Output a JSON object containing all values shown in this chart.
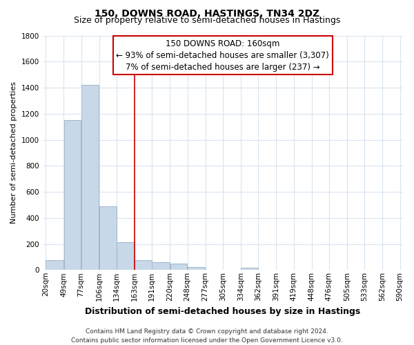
{
  "title": "150, DOWNS ROAD, HASTINGS, TN34 2DZ",
  "subtitle": "Size of property relative to semi-detached houses in Hastings",
  "xlabel": "Distribution of semi-detached houses by size in Hastings",
  "ylabel": "Number of semi-detached properties",
  "bar_edges": [
    20,
    49,
    77,
    106,
    134,
    163,
    191,
    220,
    248,
    277,
    305,
    334,
    362,
    391,
    419,
    448,
    476,
    505,
    533,
    562,
    590
  ],
  "bar_heights": [
    75,
    1150,
    1420,
    490,
    215,
    75,
    60,
    50,
    25,
    0,
    0,
    15,
    0,
    0,
    0,
    0,
    0,
    0,
    0,
    0
  ],
  "bar_color": "#c8d8e8",
  "bar_edgecolor": "#a0b8cc",
  "property_line_x": 163,
  "property_line_color": "#cc0000",
  "annotation_line1": "150 DOWNS ROAD: 160sqm",
  "annotation_line2": "← 93% of semi-detached houses are smaller (3,307)",
  "annotation_line3": "7% of semi-detached houses are larger (237) →",
  "ylim": [
    0,
    1800
  ],
  "yticks": [
    0,
    200,
    400,
    600,
    800,
    1000,
    1200,
    1400,
    1600,
    1800
  ],
  "xtick_labels": [
    "20sqm",
    "49sqm",
    "77sqm",
    "106sqm",
    "134sqm",
    "163sqm",
    "191sqm",
    "220sqm",
    "248sqm",
    "277sqm",
    "305sqm",
    "334sqm",
    "362sqm",
    "391sqm",
    "419sqm",
    "448sqm",
    "476sqm",
    "505sqm",
    "533sqm",
    "562sqm",
    "590sqm"
  ],
  "footer_line1": "Contains HM Land Registry data © Crown copyright and database right 2024.",
  "footer_line2": "Contains public sector information licensed under the Open Government Licence v3.0.",
  "background_color": "#ffffff",
  "grid_color": "#d8e4f0",
  "title_fontsize": 10,
  "subtitle_fontsize": 9,
  "xlabel_fontsize": 9,
  "ylabel_fontsize": 8,
  "tick_fontsize": 7.5,
  "annotation_fontsize": 8.5,
  "footer_fontsize": 6.5
}
